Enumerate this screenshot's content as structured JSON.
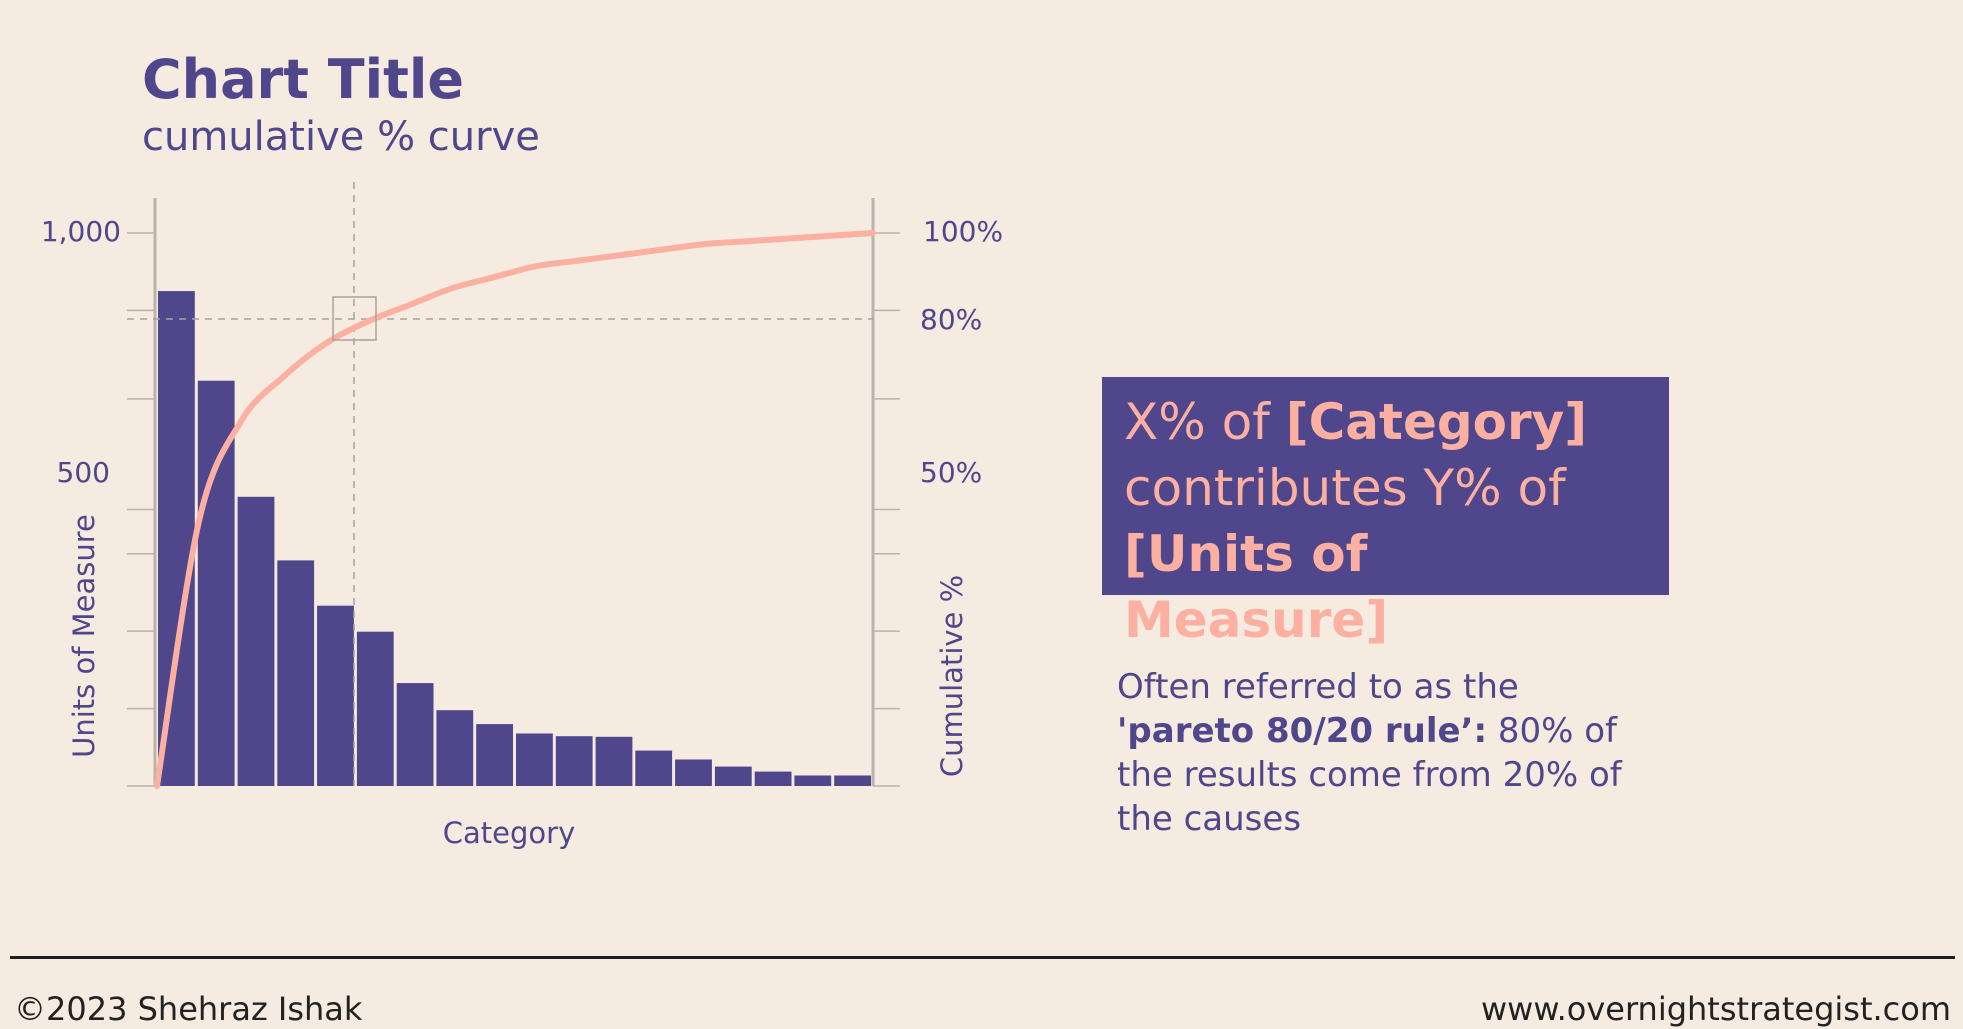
{
  "header": {
    "title": "Chart Title",
    "subtitle": "cumulative % curve"
  },
  "chart_data": {
    "type": "bar",
    "title": "Chart Title",
    "subtitle": "cumulative % curve",
    "xlabel": "Category",
    "ylabel": "Units of Measure",
    "y2label": "Cumulative %",
    "ylim": [
      0,
      1000
    ],
    "y2lim": [
      0,
      100
    ],
    "y_ticks": [
      0,
      140,
      280,
      420,
      500,
      700,
      860,
      1000
    ],
    "y_tick_labels": [
      "1,000",
      "500"
    ],
    "y2_tick_labels": [
      "100%",
      "80%",
      "50%"
    ],
    "values": [
      895,
      733,
      523,
      408,
      326,
      279,
      186,
      137,
      112,
      95,
      90,
      89,
      64,
      48,
      35,
      26,
      19,
      19
    ],
    "cumulative_pct": [
      0,
      48,
      66,
      74,
      80,
      84,
      87,
      90,
      92,
      94,
      95,
      96,
      97,
      98,
      98.5,
      99,
      99.5,
      100
    ],
    "reference_lines": {
      "x_category_index": 5,
      "y2_pct": 80
    },
    "bar_color": "#4f468c",
    "curve_color": "#fbb0a2",
    "grid": false
  },
  "callout": {
    "part1": "X% of ",
    "category": "[Category]",
    "part2": "contributes Y% of",
    "units": "[Units of Measure]"
  },
  "note": {
    "line1": "Often referred to as the",
    "rule": "'pareto 80/20 rule’:",
    "rest": " 80% of the results come from 20% of the causes"
  },
  "footer": {
    "copyright": "©2023 Shehraz Ishak",
    "website": "www.overnightstrategist.com"
  }
}
